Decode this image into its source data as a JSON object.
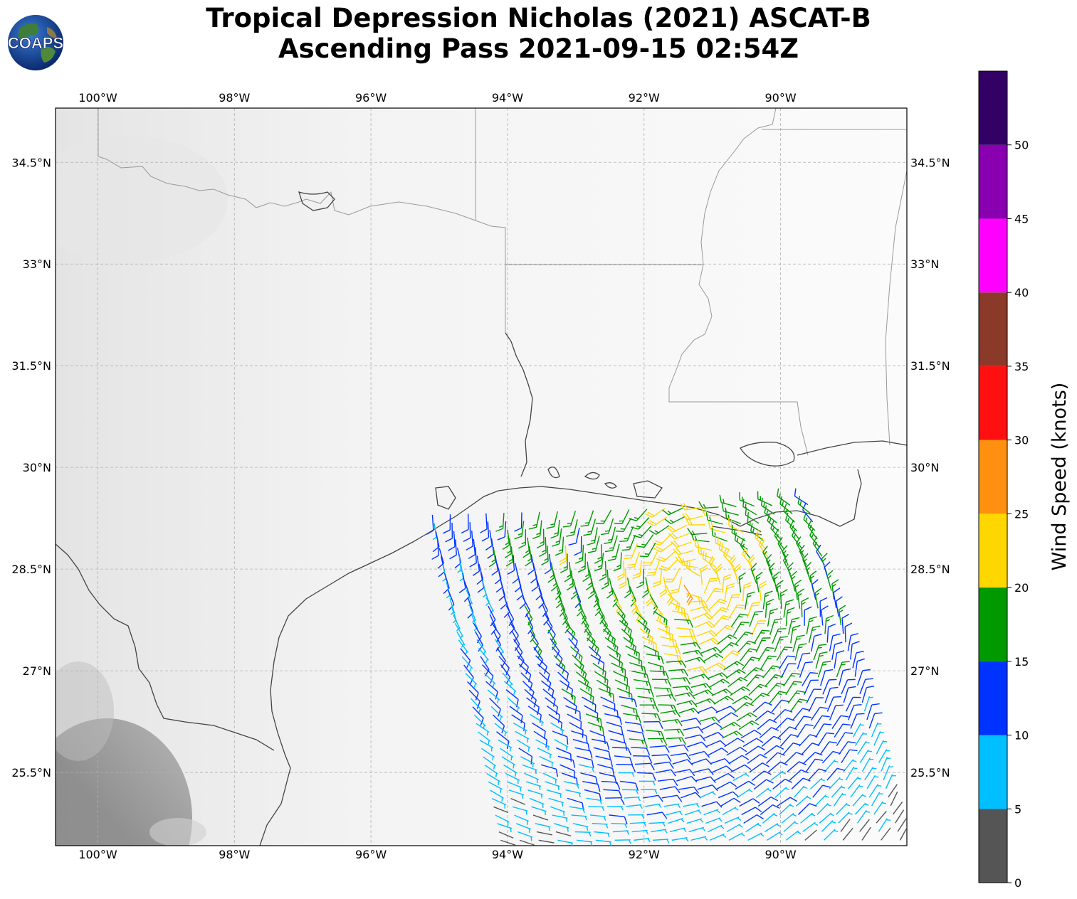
{
  "title": {
    "line1": "Tropical Depression Nicholas (2021) ASCAT-B",
    "line2": "Ascending Pass 2021-09-15 02:54Z"
  },
  "logo": {
    "text": "COAPS",
    "icon": "globe-logo-icon"
  },
  "map": {
    "lon_labels": [
      "100°W",
      "98°W",
      "96°W",
      "94°W",
      "92°W",
      "90°W"
    ],
    "lat_labels": [
      "34.5°N",
      "33°N",
      "31.5°N",
      "30°N",
      "28.5°N",
      "27°N",
      "25.5°N"
    ],
    "lon_range": [
      -100.62,
      -88.15
    ],
    "lat_range": [
      24.42,
      35.3
    ],
    "lon_ticks": [
      -100,
      -98,
      -96,
      -94,
      -92,
      -90
    ],
    "lat_ticks": [
      34.5,
      33,
      31.5,
      30,
      28.5,
      27,
      25.5
    ],
    "gridlines": true,
    "background": "grayscale satellite imagery",
    "land_outline_color": "#444444",
    "state_border_color": "#999999"
  },
  "colorbar": {
    "label": "Wind Speed (knots)",
    "ticks": [
      "0",
      "5",
      "10",
      "15",
      "20",
      "25",
      "30",
      "35",
      "40",
      "45",
      "50"
    ],
    "range": [
      0,
      55
    ],
    "bins": [
      {
        "from": 0,
        "to": 5,
        "color": "#555555"
      },
      {
        "from": 5,
        "to": 10,
        "color": "#00bfff"
      },
      {
        "from": 10,
        "to": 15,
        "color": "#0033ff"
      },
      {
        "from": 15,
        "to": 20,
        "color": "#009900"
      },
      {
        "from": 20,
        "to": 25,
        "color": "#ffd700"
      },
      {
        "from": 25,
        "to": 30,
        "color": "#ff9010"
      },
      {
        "from": 30,
        "to": 35,
        "color": "#ff1010"
      },
      {
        "from": 35,
        "to": 40,
        "color": "#8b3a2a"
      },
      {
        "from": 40,
        "to": 45,
        "color": "#ff00ff"
      },
      {
        "from": 45,
        "to": 50,
        "color": "#8800b0"
      },
      {
        "from": 50,
        "to": 55,
        "color": "#330066"
      }
    ]
  },
  "wind_swath": {
    "instrument": "ASCAT-B",
    "pass": "ascending",
    "corners": {
      "top_left": [
        -95.1,
        29.3
      ],
      "top_right": [
        -89.6,
        29.45
      ],
      "bottom_left": [
        -94.1,
        24.5
      ],
      "bottom_right": [
        -88.25,
        24.5
      ]
    },
    "rows": 40,
    "cols": 22
  }
}
